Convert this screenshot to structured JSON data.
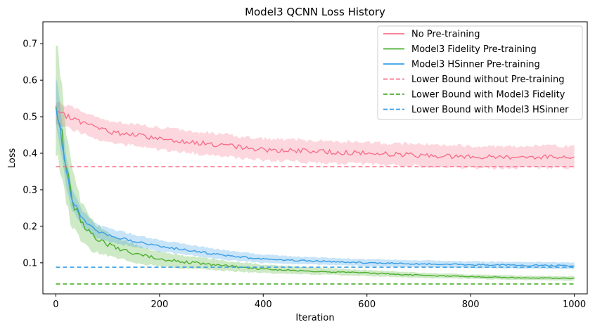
{
  "chart_data": {
    "type": "line",
    "title": "Model3 QCNN Loss History",
    "xlabel": "Iteration",
    "ylabel": "Loss",
    "xlim": [
      -25,
      1025
    ],
    "ylim": [
      0.015,
      0.76
    ],
    "xticks": [
      0,
      200,
      400,
      600,
      800,
      1000
    ],
    "yticks": [
      0.1,
      0.2,
      0.3,
      0.4,
      0.5,
      0.6,
      0.7
    ],
    "grid": false,
    "legend_position": "top-right",
    "series": [
      {
        "name": "No Pre-training",
        "color": "#f7708a",
        "style": "solid",
        "x": [
          0,
          25,
          50,
          100,
          150,
          200,
          300,
          400,
          500,
          600,
          700,
          800,
          900,
          1000
        ],
        "y": [
          0.51,
          0.5,
          0.485,
          0.46,
          0.45,
          0.44,
          0.425,
          0.41,
          0.405,
          0.4,
          0.395,
          0.39,
          0.39,
          0.39
        ],
        "band": 0.03
      },
      {
        "name": "Model3 Fidelity Pre-training",
        "color": "#4daf2f",
        "style": "solid",
        "x": [
          0,
          10,
          20,
          30,
          50,
          75,
          100,
          150,
          200,
          300,
          400,
          500,
          600,
          700,
          800,
          900,
          1000
        ],
        "y": [
          0.56,
          0.47,
          0.36,
          0.28,
          0.21,
          0.17,
          0.15,
          0.125,
          0.11,
          0.095,
          0.083,
          0.077,
          0.072,
          0.066,
          0.062,
          0.059,
          0.057
        ],
        "band_upper": [
          0.72,
          0.6,
          0.46,
          0.36,
          0.26,
          0.21,
          0.18,
          0.15,
          0.13,
          0.11,
          0.095,
          0.087,
          0.08,
          0.073,
          0.068,
          0.065,
          0.063
        ],
        "band_lower": [
          0.4,
          0.34,
          0.27,
          0.2,
          0.16,
          0.13,
          0.12,
          0.1,
          0.09,
          0.08,
          0.072,
          0.068,
          0.064,
          0.059,
          0.056,
          0.053,
          0.051
        ]
      },
      {
        "name": "Model3 HSinner Pre-training",
        "color": "#3a9ee6",
        "style": "solid",
        "x": [
          0,
          10,
          20,
          30,
          50,
          75,
          100,
          150,
          200,
          300,
          400,
          500,
          600,
          700,
          800,
          900,
          1000
        ],
        "y": [
          0.54,
          0.45,
          0.35,
          0.28,
          0.22,
          0.19,
          0.175,
          0.16,
          0.145,
          0.125,
          0.11,
          0.105,
          0.1,
          0.097,
          0.095,
          0.093,
          0.092
        ],
        "band_upper": [
          0.62,
          0.51,
          0.39,
          0.31,
          0.245,
          0.21,
          0.195,
          0.178,
          0.162,
          0.14,
          0.122,
          0.115,
          0.11,
          0.107,
          0.104,
          0.102,
          0.101
        ],
        "band_lower": [
          0.48,
          0.4,
          0.31,
          0.25,
          0.2,
          0.17,
          0.158,
          0.145,
          0.132,
          0.112,
          0.099,
          0.095,
          0.091,
          0.088,
          0.086,
          0.084,
          0.083
        ]
      },
      {
        "name": "Lower Bound without Pre-training",
        "color": "#f7708a",
        "style": "dashed",
        "x": [
          0,
          1000
        ],
        "y": [
          0.363,
          0.363
        ]
      },
      {
        "name": "Lower Bound with Model3 Fidelity",
        "color": "#4daf2f",
        "style": "dashed",
        "x": [
          0,
          1000
        ],
        "y": [
          0.042,
          0.042
        ]
      },
      {
        "name": "Lower Bound with Model3 HSinner",
        "color": "#3a9ee6",
        "style": "dashed",
        "x": [
          0,
          1000
        ],
        "y": [
          0.088,
          0.088
        ]
      }
    ]
  }
}
